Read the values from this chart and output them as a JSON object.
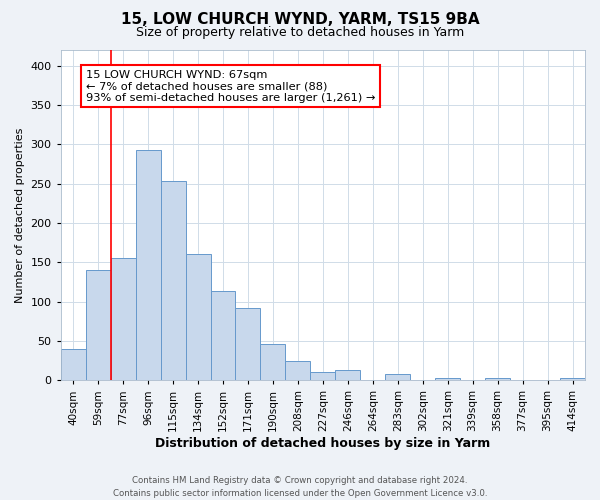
{
  "title": "15, LOW CHURCH WYND, YARM, TS15 9BA",
  "subtitle": "Size of property relative to detached houses in Yarm",
  "xlabel": "Distribution of detached houses by size in Yarm",
  "ylabel": "Number of detached properties",
  "bar_labels": [
    "40sqm",
    "59sqm",
    "77sqm",
    "96sqm",
    "115sqm",
    "134sqm",
    "152sqm",
    "171sqm",
    "190sqm",
    "208sqm",
    "227sqm",
    "246sqm",
    "264sqm",
    "283sqm",
    "302sqm",
    "321sqm",
    "339sqm",
    "358sqm",
    "377sqm",
    "395sqm",
    "414sqm"
  ],
  "bar_heights": [
    40,
    140,
    155,
    293,
    253,
    160,
    113,
    92,
    46,
    25,
    10,
    13,
    0,
    8,
    0,
    3,
    0,
    3,
    0,
    0,
    3
  ],
  "bar_color": "#c8d8ec",
  "bar_edge_color": "#6699cc",
  "annotation_line1": "15 LOW CHURCH WYND: 67sqm",
  "annotation_line2": "← 7% of detached houses are smaller (88)",
  "annotation_line3": "93% of semi-detached houses are larger (1,261) →",
  "red_line_x": 1.5,
  "ylim": [
    0,
    420
  ],
  "yticks": [
    0,
    50,
    100,
    150,
    200,
    250,
    300,
    350,
    400
  ],
  "footnote_line1": "Contains HM Land Registry data © Crown copyright and database right 2024.",
  "footnote_line2": "Contains public sector information licensed under the Open Government Licence v3.0.",
  "background_color": "#eef2f7",
  "plot_bg_color": "#ffffff",
  "grid_color": "#d0dce8",
  "title_fontsize": 11,
  "subtitle_fontsize": 9,
  "xlabel_fontsize": 9,
  "ylabel_fontsize": 8,
  "tick_fontsize": 7.5
}
